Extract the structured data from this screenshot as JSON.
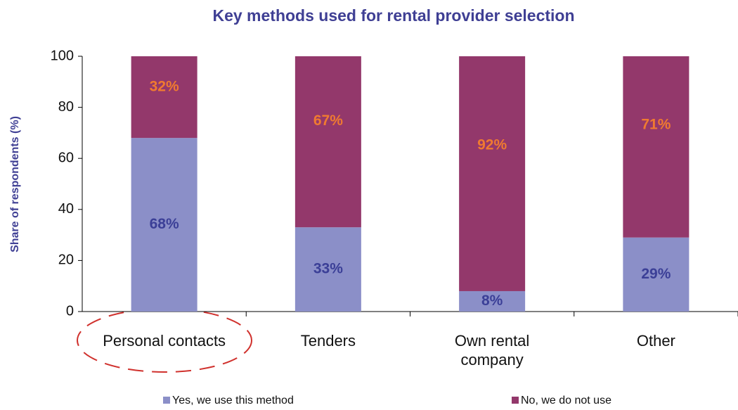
{
  "chart_data": {
    "type": "stacked_bar",
    "title": "Key methods used for rental provider selection",
    "y_label": "Share of respondents (%)",
    "categories": [
      "Personal contacts",
      "Tenders",
      "Own rental company",
      "Other"
    ],
    "series": [
      {
        "name": "Yes, we use this method",
        "color": "#8b8fc8",
        "label_color": "#3b3f97",
        "values": [
          68,
          33,
          8,
          29
        ],
        "value_labels": [
          "68%",
          "33%",
          "8%",
          "29%"
        ]
      },
      {
        "name": "No, we do not use",
        "color": "#93386b",
        "label_color": "#f07a30",
        "values": [
          32,
          67,
          92,
          71
        ],
        "value_labels": [
          "32%",
          "67%",
          "92%",
          "71%"
        ]
      }
    ],
    "ylim": [
      0,
      100
    ],
    "yticks": [
      0,
      20,
      40,
      60,
      80,
      100
    ]
  }
}
